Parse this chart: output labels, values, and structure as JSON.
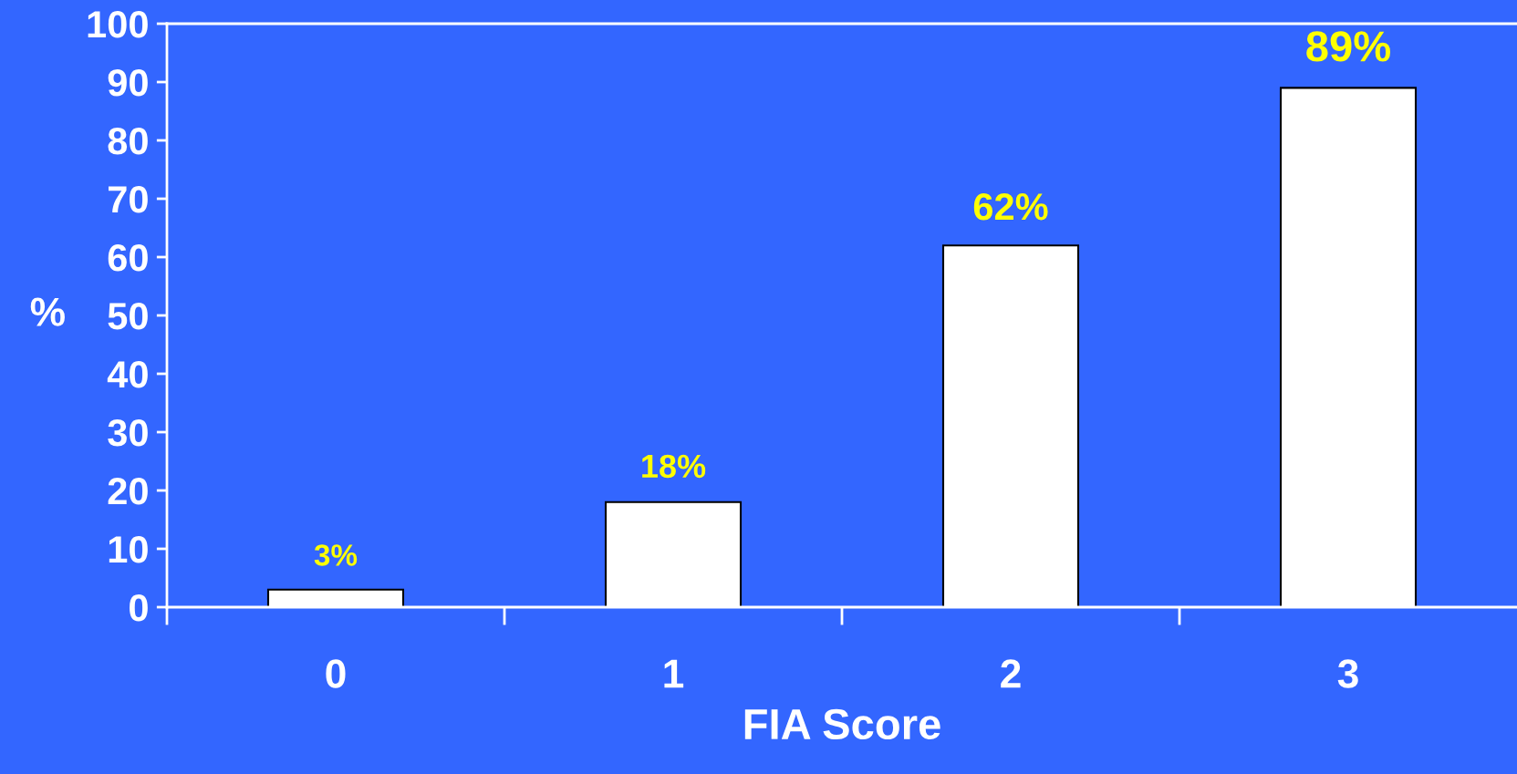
{
  "chart_data": {
    "type": "bar",
    "xlabel": "FIA Score",
    "ylabel": "%",
    "categories": [
      "0",
      "1",
      "2",
      "3"
    ],
    "values": [
      3,
      18,
      62,
      89
    ],
    "value_labels": [
      "3%",
      "18%",
      "62%",
      "89%"
    ],
    "color": "#ffffff",
    "ylim": [
      0,
      100
    ],
    "yticks": [
      0,
      10,
      20,
      30,
      40,
      50,
      60,
      70,
      80,
      90,
      100
    ],
    "grid": false,
    "legend": false
  }
}
